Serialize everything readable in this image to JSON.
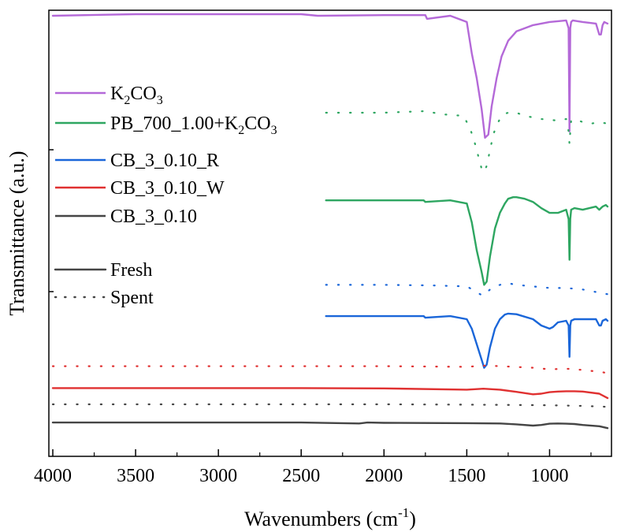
{
  "chart_data": {
    "type": "line",
    "xlabel": "Wavenumbers (cm-1)",
    "xlabel_parts": {
      "main": "Wavenumbers (cm",
      "sup": "-1",
      "close": ")"
    },
    "ylabel": "Transmittance (a.u.)",
    "xlim": [
      4000,
      650
    ],
    "x_reversed": true,
    "x_ticks": [
      4000,
      3500,
      3000,
      2500,
      2000,
      1500,
      1000
    ],
    "y_ticks_shown": false,
    "grid": false,
    "legend": {
      "placement": "left",
      "items": [
        {
          "label": "K2CO3",
          "parts": [
            "K",
            {
              "sub": "2"
            },
            "CO",
            {
              "sub": "3"
            }
          ],
          "color": "#b469d8",
          "style": "solid"
        },
        {
          "label": "PB_700_1.00+K2CO3",
          "parts": [
            "PB_700_1.00+K",
            {
              "sub": "2"
            },
            "CO",
            {
              "sub": "3"
            }
          ],
          "color": "#2ea661",
          "style": "solid"
        },
        {
          "label": "CB_3_0.10_R",
          "parts": [
            "CB_3_0.10_R"
          ],
          "color": "#1a66d9",
          "style": "solid"
        },
        {
          "label": "CB_3_0.10_W",
          "parts": [
            "CB_3_0.10_W"
          ],
          "color": "#e03131",
          "style": "solid"
        },
        {
          "label": "CB_3_0.10",
          "parts": [
            "CB_3_0.10"
          ],
          "color": "#454545",
          "style": "solid"
        }
      ],
      "style_items": [
        {
          "label": "Fresh",
          "color": "#454545",
          "style": "solid"
        },
        {
          "label": "Spent",
          "color": "#454545",
          "style": "dotted"
        }
      ]
    },
    "series": [
      {
        "name": "K2CO3",
        "style": "solid",
        "color": "#b469d8",
        "offset": 13.2,
        "x": [
          4000,
          3500,
          3000,
          2500,
          2400,
          2000,
          1750,
          1740,
          1600,
          1500,
          1470,
          1440,
          1410,
          1390,
          1370,
          1350,
          1320,
          1290,
          1250,
          1200,
          1100,
          1000,
          900,
          885,
          880,
          875,
          870,
          860,
          800,
          720,
          700,
          690,
          680,
          670,
          650
        ],
        "y": [
          13.2,
          13.25,
          13.25,
          13.25,
          13.2,
          13.22,
          13.22,
          13.1,
          13.2,
          13.0,
          12.0,
          11.2,
          10.2,
          9.3,
          9.4,
          10.3,
          11.2,
          11.9,
          12.4,
          12.7,
          12.9,
          13.0,
          13.05,
          12.8,
          9.5,
          12.8,
          13.0,
          13.05,
          13.0,
          12.95,
          12.6,
          12.6,
          12.9,
          13.0,
          12.95
        ]
      },
      {
        "name": "PB_700_1.00+K2CO3 (Spent)",
        "style": "dotted",
        "color": "#2ea661",
        "offset": 10.1,
        "x": [
          2350,
          2000,
          1750,
          1650,
          1520,
          1480,
          1450,
          1430,
          1410,
          1395,
          1380,
          1360,
          1340,
          1320,
          1300,
          1280,
          1250,
          1200,
          1150,
          1050,
          950,
          900,
          885,
          880,
          875,
          870,
          850,
          800,
          750,
          700,
          650
        ],
        "y": [
          10.1,
          10.1,
          10.15,
          10.05,
          10.0,
          9.6,
          9.1,
          8.7,
          8.3,
          8.2,
          8.4,
          8.9,
          9.4,
          9.7,
          9.9,
          10.05,
          10.1,
          10.1,
          10.0,
          9.9,
          9.85,
          9.9,
          9.5,
          9.1,
          9.5,
          9.85,
          9.9,
          9.8,
          9.75,
          9.8,
          9.75
        ]
      },
      {
        "name": "PB_700_1.00+K2CO3 (Fresh)",
        "style": "solid",
        "color": "#2ea661",
        "offset": 7.3,
        "x": [
          2350,
          2000,
          1760,
          1750,
          1600,
          1500,
          1470,
          1440,
          1410,
          1395,
          1380,
          1360,
          1330,
          1300,
          1270,
          1250,
          1220,
          1200,
          1150,
          1100,
          1050,
          1000,
          950,
          900,
          885,
          880,
          875,
          870,
          850,
          800,
          720,
          700,
          680,
          660,
          650
        ],
        "y": [
          7.3,
          7.3,
          7.3,
          7.25,
          7.3,
          7.2,
          6.6,
          5.7,
          5.0,
          4.6,
          4.7,
          5.5,
          6.4,
          6.9,
          7.2,
          7.35,
          7.4,
          7.4,
          7.35,
          7.25,
          7.05,
          6.9,
          6.9,
          7.0,
          6.7,
          5.4,
          6.7,
          7.0,
          7.05,
          7.0,
          7.1,
          7.0,
          7.1,
          7.15,
          7.1
        ]
      },
      {
        "name": "CB_3_0.10_R (Spent)",
        "style": "dotted",
        "color": "#1a66d9",
        "offset": 4.6,
        "x": [
          2350,
          2000,
          1700,
          1500,
          1450,
          1420,
          1400,
          1380,
          1350,
          1300,
          1250,
          1200,
          1100,
          1000,
          900,
          800,
          700,
          650
        ],
        "y": [
          4.6,
          4.6,
          4.58,
          4.55,
          4.4,
          4.3,
          4.25,
          4.35,
          4.5,
          4.6,
          4.65,
          4.6,
          4.55,
          4.5,
          4.5,
          4.45,
          4.35,
          4.3
        ]
      },
      {
        "name": "CB_3_0.10_R (Fresh)",
        "style": "solid",
        "color": "#1a66d9",
        "offset": 3.6,
        "x": [
          2350,
          2000,
          1760,
          1750,
          1600,
          1500,
          1470,
          1440,
          1410,
          1395,
          1380,
          1360,
          1330,
          1300,
          1270,
          1250,
          1200,
          1100,
          1050,
          1000,
          980,
          950,
          900,
          885,
          880,
          875,
          870,
          850,
          800,
          720,
          700,
          690,
          680,
          660,
          650
        ],
        "y": [
          3.6,
          3.6,
          3.6,
          3.55,
          3.6,
          3.5,
          3.2,
          2.7,
          2.2,
          1.95,
          2.05,
          2.6,
          3.2,
          3.5,
          3.65,
          3.68,
          3.66,
          3.5,
          3.3,
          3.2,
          3.25,
          3.4,
          3.45,
          3.3,
          2.3,
          3.3,
          3.45,
          3.5,
          3.5,
          3.5,
          3.3,
          3.3,
          3.45,
          3.5,
          3.45
        ]
      },
      {
        "name": "CB_3_0.10_W (Spent)",
        "style": "dotted",
        "color": "#e03131",
        "offset": 2.0,
        "x": [
          4000,
          3500,
          3000,
          2500,
          2000,
          1500,
          1380,
          1300,
          1100,
          1000,
          900,
          800,
          700,
          650
        ],
        "y": [
          2.0,
          2.0,
          2.0,
          2.0,
          2.0,
          1.98,
          2.02,
          2.0,
          1.95,
          1.9,
          1.92,
          1.88,
          1.82,
          1.78
        ]
      },
      {
        "name": "CB_3_0.10_W (Fresh)",
        "style": "solid",
        "color": "#e03131",
        "offset": 1.3,
        "x": [
          4000,
          3500,
          3000,
          2500,
          2000,
          1500,
          1400,
          1300,
          1200,
          1100,
          1050,
          1000,
          950,
          900,
          850,
          800,
          700,
          650
        ],
        "y": [
          1.3,
          1.3,
          1.3,
          1.3,
          1.29,
          1.25,
          1.28,
          1.25,
          1.18,
          1.1,
          1.12,
          1.17,
          1.19,
          1.2,
          1.2,
          1.19,
          1.12,
          0.98
        ]
      },
      {
        "name": "CB_3_0.10 (Spent)",
        "style": "dotted",
        "color": "#454545",
        "offset": 0.78,
        "x": [
          4000,
          3500,
          3000,
          2500,
          2000,
          1500,
          1200,
          1000,
          800,
          650
        ],
        "y": [
          0.78,
          0.78,
          0.78,
          0.78,
          0.78,
          0.77,
          0.76,
          0.75,
          0.73,
          0.7
        ]
      },
      {
        "name": "CB_3_0.10 (Fresh)",
        "style": "solid",
        "color": "#454545",
        "offset": 0.2,
        "x": [
          4000,
          3500,
          3000,
          2500,
          2150,
          2100,
          2000,
          1500,
          1300,
          1200,
          1100,
          1050,
          1000,
          950,
          900,
          850,
          800,
          700,
          650
        ],
        "y": [
          0.2,
          0.2,
          0.2,
          0.2,
          0.17,
          0.2,
          0.19,
          0.18,
          0.17,
          0.14,
          0.1,
          0.12,
          0.16,
          0.17,
          0.16,
          0.15,
          0.12,
          0.08,
          0.02
        ]
      }
    ]
  }
}
